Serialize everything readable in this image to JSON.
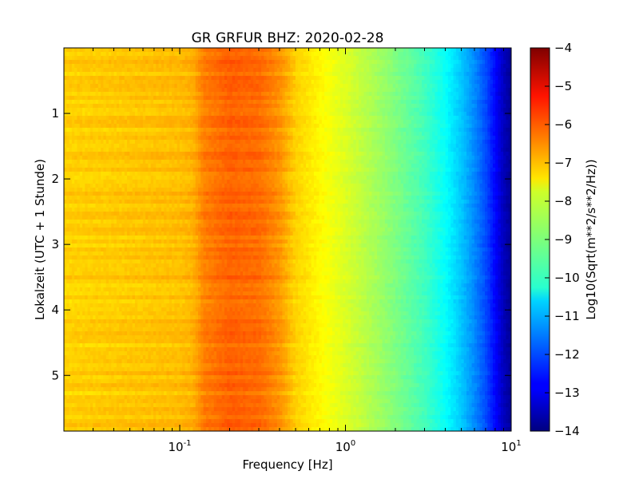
{
  "chart_data": {
    "type": "heatmap",
    "title": "GR GRFUR BHZ: 2020-02-28",
    "xlabel": "Frequency [Hz]",
    "ylabel": "Lokalzeit (UTC + 1 Stunde)",
    "x_scale": "log",
    "xlim": [
      0.02,
      10
    ],
    "ylim": [
      5.85,
      0
    ],
    "x_ticks": [
      {
        "value": 0.1,
        "base": "10",
        "exp": "-1"
      },
      {
        "value": 1,
        "base": "10",
        "exp": "0"
      },
      {
        "value": 10,
        "base": "10",
        "exp": "1"
      }
    ],
    "y_ticks": [
      {
        "value": 1,
        "label": "1"
      },
      {
        "value": 2,
        "label": "2"
      },
      {
        "value": 3,
        "label": "3"
      },
      {
        "value": 4,
        "label": "4"
      },
      {
        "value": 5,
        "label": "5"
      }
    ],
    "colormap": "jet",
    "colorbar": {
      "label": "Log10(Sqrt(m**2/s**2/Hz))",
      "range": [
        -14,
        -4
      ],
      "ticks": [
        {
          "value": -4,
          "label": "−4"
        },
        {
          "value": -5,
          "label": "−5"
        },
        {
          "value": -6,
          "label": "−6"
        },
        {
          "value": -7,
          "label": "−7"
        },
        {
          "value": -8,
          "label": "−8"
        },
        {
          "value": -9,
          "label": "−9"
        },
        {
          "value": -10,
          "label": "−10"
        },
        {
          "value": -11,
          "label": "−11"
        },
        {
          "value": -12,
          "label": "−12"
        },
        {
          "value": -13,
          "label": "−13"
        },
        {
          "value": -14,
          "label": "−14"
        }
      ]
    },
    "spectrum_profile": {
      "frequency_hz": [
        0.02,
        0.05,
        0.1,
        0.12,
        0.14,
        0.2,
        0.3,
        0.4,
        0.5,
        0.7,
        1.0,
        1.5,
        2.0,
        3.0,
        4.0,
        5.0,
        6.0,
        7.0,
        8.0,
        9.0,
        10.0
      ],
      "log10_amplitude": [
        -7.3,
        -7.2,
        -7.1,
        -7.0,
        -6.5,
        -6.2,
        -6.3,
        -6.7,
        -7.3,
        -7.7,
        -8.1,
        -8.6,
        -9.0,
        -9.6,
        -10.2,
        -10.8,
        -11.4,
        -12.0,
        -12.7,
        -13.4,
        -13.8
      ]
    }
  }
}
